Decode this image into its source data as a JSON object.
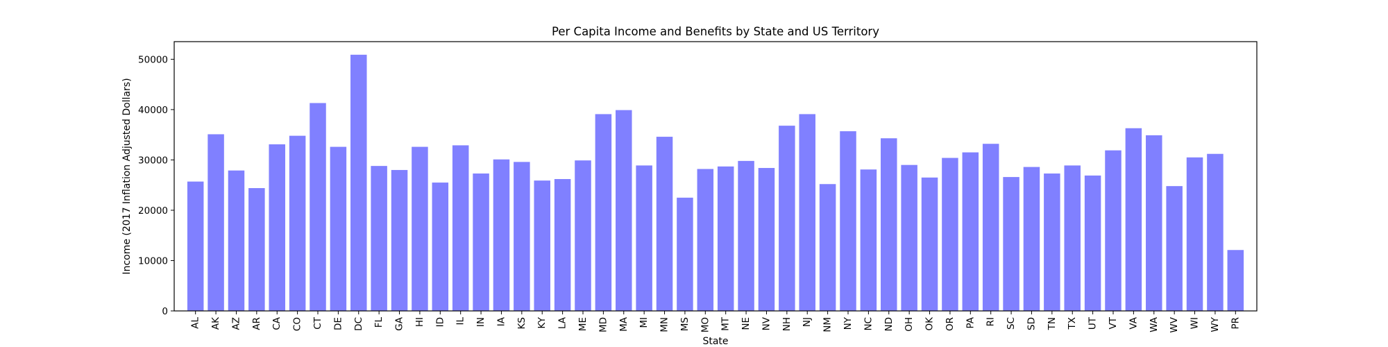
{
  "chart_data": {
    "type": "bar",
    "title": "Per Capita Income and Benefits by State and US Territory",
    "xlabel": "State",
    "ylabel": "Income (2017 Inflation Adjusted Dollars)",
    "ylim": [
      0,
      53500
    ],
    "yticks": [
      0,
      10000,
      20000,
      30000,
      40000,
      50000
    ],
    "grid": false,
    "bar_color": "#8080ff",
    "categories": [
      "AL",
      "AK",
      "AZ",
      "AR",
      "CA",
      "CO",
      "CT",
      "DE",
      "DC",
      "FL",
      "GA",
      "HI",
      "ID",
      "IL",
      "IN",
      "IA",
      "KS",
      "KY",
      "LA",
      "ME",
      "MD",
      "MA",
      "MI",
      "MN",
      "MS",
      "MO",
      "MT",
      "NE",
      "NV",
      "NH",
      "NJ",
      "NM",
      "NY",
      "NC",
      "ND",
      "OH",
      "OK",
      "OR",
      "PA",
      "RI",
      "SC",
      "SD",
      "TN",
      "TX",
      "UT",
      "VT",
      "VA",
      "WA",
      "WV",
      "WI",
      "WY",
      "PR"
    ],
    "values": [
      25700,
      35100,
      27900,
      24400,
      33100,
      34800,
      41300,
      32600,
      50900,
      28800,
      28000,
      32600,
      25500,
      32900,
      27300,
      30100,
      29600,
      25900,
      26200,
      29900,
      39100,
      39900,
      28900,
      34600,
      22500,
      28200,
      28700,
      29800,
      28400,
      36800,
      39100,
      25200,
      35700,
      28100,
      34300,
      29000,
      26500,
      30400,
      31500,
      33200,
      26600,
      28600,
      27300,
      28900,
      26900,
      31900,
      36300,
      34900,
      24800,
      30500,
      31200,
      12100
    ]
  }
}
